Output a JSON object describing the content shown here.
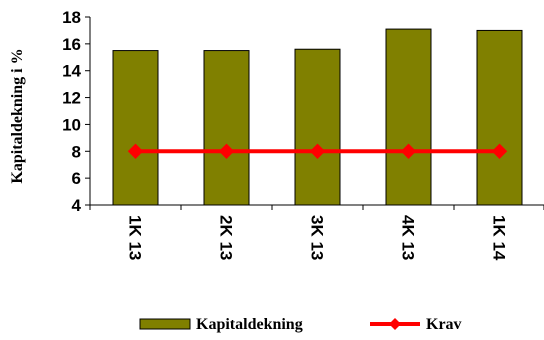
{
  "chart_data": {
    "type": "bar",
    "categories": [
      "1K 13",
      "2K 13",
      "3K 13",
      "4K 13",
      "1K 14"
    ],
    "series": [
      {
        "name": "Kapitaldekning",
        "type": "bar",
        "values": [
          15.5,
          15.5,
          15.6,
          17.1,
          17.0
        ],
        "color": "#808000"
      },
      {
        "name": "Krav",
        "type": "line",
        "values": [
          8,
          8,
          8,
          8,
          8
        ],
        "color": "#ff0000"
      }
    ],
    "title": "",
    "xlabel": "",
    "ylabel": "Kapitaldekning i %",
    "ylim": [
      4,
      18
    ],
    "yticks": [
      4,
      6,
      8,
      10,
      12,
      14,
      16,
      18
    ],
    "grid": false,
    "legend_position": "bottom"
  }
}
